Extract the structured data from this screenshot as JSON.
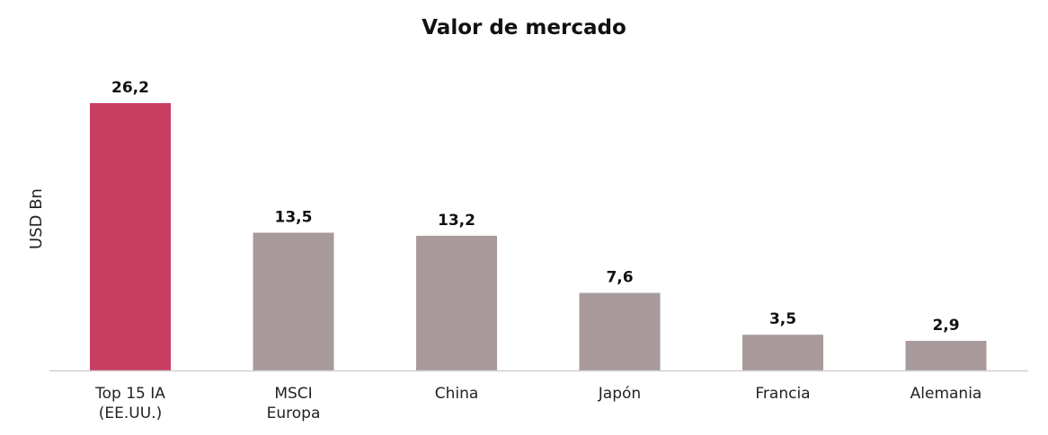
{
  "chart_data": {
    "type": "bar",
    "title": "Valor de mercado",
    "xlabel": "",
    "ylabel": "USD Bn",
    "categories": [
      [
        "Top 15 IA",
        "(EE.UU.)"
      ],
      [
        "MSCI",
        "Europa"
      ],
      [
        "China"
      ],
      [
        "Japón"
      ],
      [
        "Francia"
      ],
      [
        "Alemania"
      ]
    ],
    "values": [
      26.2,
      13.5,
      13.2,
      7.6,
      3.5,
      2.9
    ],
    "value_labels": [
      "26,2",
      "13,5",
      "13,2",
      "7,6",
      "3,5",
      "2,9"
    ],
    "ylim": [
      0,
      26.2
    ],
    "grid": false,
    "legend": "none",
    "colors": {
      "highlight": "#C73E62",
      "default": "#A89A9B",
      "axis": "#D0D0D0"
    },
    "highlight_index": 0
  }
}
